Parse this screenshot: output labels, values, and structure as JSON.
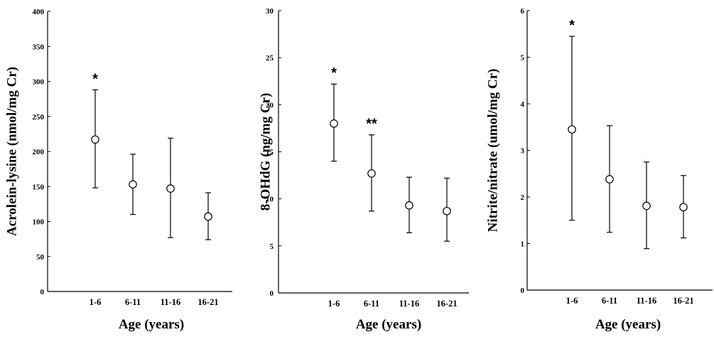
{
  "chart_data": [
    {
      "type": "scatter",
      "ylabel": "Acrolein-lysine (nmol/mg Cr)",
      "xlabel": "Age (years)",
      "categories": [
        "1-6",
        "6-11",
        "11-16",
        "16-21"
      ],
      "ylim": [
        0,
        400
      ],
      "yticks": [
        0,
        50,
        100,
        150,
        200,
        250,
        300,
        350,
        400
      ],
      "series": [
        {
          "values": [
            217,
            153,
            147,
            107
          ],
          "error_low": [
            148,
            110,
            77,
            74
          ],
          "error_high": [
            288,
            196,
            219,
            141
          ]
        }
      ],
      "annotations": [
        {
          "category": "1-6",
          "text": "*"
        }
      ]
    },
    {
      "type": "scatter",
      "ylabel": "8-OHdG (ng/mg Cr)",
      "xlabel": "Age (years)",
      "categories": [
        "1-6",
        "6-11",
        "11-16",
        "16-21"
      ],
      "ylim": [
        0,
        30
      ],
      "yticks": [
        0,
        5,
        10,
        15,
        20,
        25,
        30
      ],
      "series": [
        {
          "values": [
            18,
            12.7,
            9.3,
            8.7
          ],
          "error_low": [
            14,
            8.7,
            6.4,
            5.5
          ],
          "error_high": [
            22.2,
            16.8,
            12.3,
            12.2
          ]
        }
      ],
      "annotations": [
        {
          "category": "1-6",
          "text": "*"
        },
        {
          "category": "6-11",
          "text": "**"
        }
      ]
    },
    {
      "type": "scatter",
      "ylabel": "Nitrite/nitrate (umol/mg Cr)",
      "xlabel": "Age (years)",
      "categories": [
        "1-6",
        "6-11",
        "11-16",
        "16-21"
      ],
      "ylim": [
        0,
        6
      ],
      "yticks": [
        0,
        1,
        2,
        3,
        4,
        5,
        6
      ],
      "series": [
        {
          "values": [
            3.45,
            2.38,
            1.81,
            1.78
          ],
          "error_low": [
            1.5,
            1.24,
            0.89,
            1.12
          ],
          "error_high": [
            5.45,
            3.53,
            2.75,
            2.46
          ]
        }
      ],
      "annotations": [
        {
          "category": "1-6",
          "text": "*"
        }
      ]
    }
  ]
}
